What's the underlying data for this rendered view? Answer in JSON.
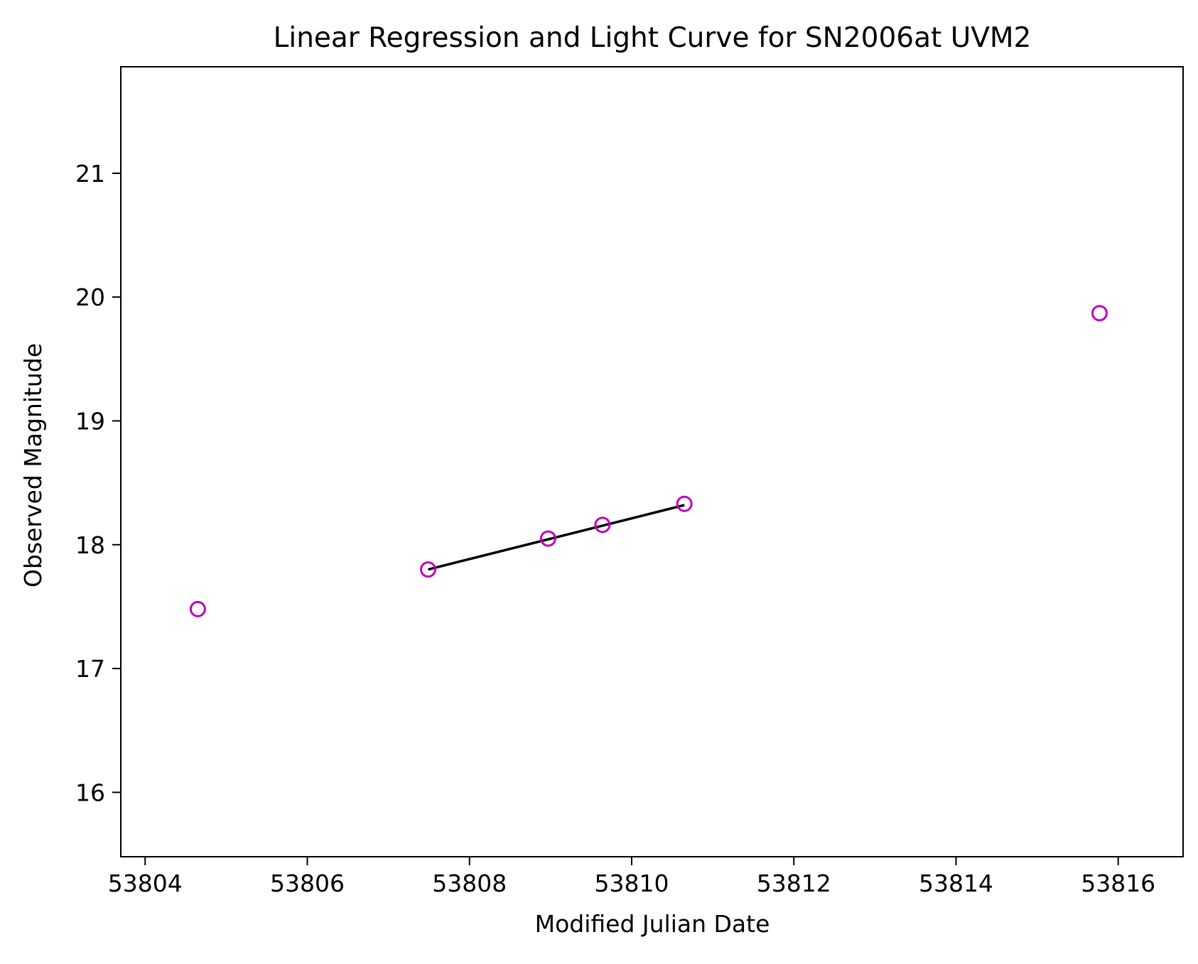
{
  "chart_data": {
    "type": "scatter",
    "title": "Linear Regression and Light Curve for SN2006at UVM2",
    "xlabel": "Modified Julian Date",
    "ylabel": "Observed Magnitude",
    "xlim": [
      53803.7,
      53816.8
    ],
    "ylim": [
      15.48,
      21.86
    ],
    "x_ticks": [
      53804,
      53806,
      53808,
      53810,
      53812,
      53814,
      53816
    ],
    "x_tick_labels": [
      "53804",
      "53806",
      "53808",
      "53810",
      "53812",
      "53814",
      "53816"
    ],
    "y_ticks": [
      16,
      17,
      18,
      19,
      20,
      21
    ],
    "y_tick_labels": [
      "16",
      "17",
      "18",
      "19",
      "20",
      "21"
    ],
    "grid": false,
    "series": [
      {
        "name": "Observations",
        "kind": "scatter",
        "marker": "open-circle",
        "color": "#bf00bf",
        "points": [
          {
            "x": 53804.65,
            "y": 17.48
          },
          {
            "x": 53807.49,
            "y": 17.8
          },
          {
            "x": 53808.97,
            "y": 18.05
          },
          {
            "x": 53809.64,
            "y": 18.16
          },
          {
            "x": 53810.65,
            "y": 18.33
          },
          {
            "x": 53815.77,
            "y": 19.87
          }
        ]
      },
      {
        "name": "Linear regression",
        "kind": "line",
        "color": "#000000",
        "points": [
          {
            "x": 53807.49,
            "y": 17.8
          },
          {
            "x": 53810.65,
            "y": 18.32
          }
        ]
      }
    ]
  }
}
